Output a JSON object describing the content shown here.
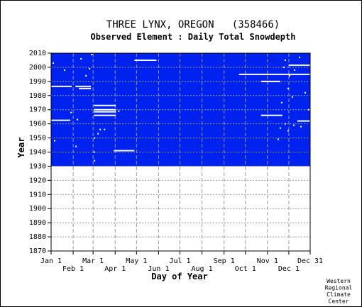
{
  "chart_data": {
    "type": "heatmap",
    "title": "THREE LYNX, OREGON   (358466)",
    "subtitle": "Observed Element : Daily Total Snowdepth",
    "xlabel": "Day of Year",
    "ylabel": "Year",
    "xlim": [
      1,
      365
    ],
    "ylim": [
      1870,
      2010
    ],
    "x_ticks_row1": [
      {
        "label": "Jan 1",
        "day": 1
      },
      {
        "label": "Mar 1",
        "day": 60
      },
      {
        "label": "May 1",
        "day": 121
      },
      {
        "label": "Jul 1",
        "day": 182
      },
      {
        "label": "Sep 1",
        "day": 244
      },
      {
        "label": "Nov 1",
        "day": 305
      },
      {
        "label": "Dec 31",
        "day": 365
      }
    ],
    "x_ticks_row2": [
      {
        "label": "Feb 1",
        "day": 32
      },
      {
        "label": "Apr 1",
        "day": 91
      },
      {
        "label": "Jun 1",
        "day": 152
      },
      {
        "label": "Aug 1",
        "day": 213
      },
      {
        "label": "Oct 1",
        "day": 274
      },
      {
        "label": "Dec 1",
        "day": 335
      }
    ],
    "y_ticks": [
      1870,
      1880,
      1890,
      1900,
      1910,
      1920,
      1930,
      1940,
      1950,
      1960,
      1970,
      1980,
      1990,
      2000,
      2010
    ],
    "grid": true,
    "record_period": {
      "start_year": 1930,
      "end_year": 2010
    },
    "colors": {
      "data_present": "#0022ee",
      "missing": "#ffffff",
      "grid": "#999999"
    },
    "missing_segments": [
      {
        "year": 1986.5,
        "start_day": 1,
        "end_day": 29
      },
      {
        "year": 1986.5,
        "start_day": 35,
        "end_day": 56
      },
      {
        "year": 1985,
        "start_day": 40,
        "end_day": 56
      },
      {
        "year": 1962.5,
        "start_day": 1,
        "end_day": 27
      },
      {
        "year": 2005,
        "start_day": 118,
        "end_day": 148
      },
      {
        "year": 1995,
        "start_day": 265,
        "end_day": 365
      },
      {
        "year": 1990,
        "start_day": 296,
        "end_day": 322
      },
      {
        "year": 1966,
        "start_day": 296,
        "end_day": 325
      },
      {
        "year": 2001.5,
        "start_day": 335,
        "end_day": 365
      },
      {
        "year": 1962,
        "start_day": 347,
        "end_day": 365
      },
      {
        "year": 1973,
        "start_day": 61,
        "end_day": 91
      },
      {
        "year": 1970,
        "start_day": 61,
        "end_day": 91
      },
      {
        "year": 1968.5,
        "start_day": 61,
        "end_day": 91
      },
      {
        "year": 1966,
        "start_day": 61,
        "end_day": 91
      },
      {
        "year": 1941,
        "start_day": 89,
        "end_day": 117
      },
      {
        "year": 1950,
        "start_day": 61,
        "end_day": 61
      },
      {
        "year": 1940,
        "start_day": 61,
        "end_day": 61
      },
      {
        "year": 1934,
        "start_day": 61,
        "end_day": 61
      }
    ],
    "missing_points": [
      {
        "year": 1948,
        "day": 6
      },
      {
        "year": 1998,
        "day": 20
      },
      {
        "year": 1968,
        "day": 29
      },
      {
        "year": 1963,
        "day": 38
      },
      {
        "year": 1944,
        "day": 36
      },
      {
        "year": 1994,
        "day": 50
      },
      {
        "year": 2006,
        "day": 43
      },
      {
        "year": 1999,
        "day": 55
      },
      {
        "year": 2009,
        "day": 58
      },
      {
        "year": 2003,
        "day": 4
      },
      {
        "year": 1956,
        "day": 70
      },
      {
        "year": 1956,
        "day": 76
      },
      {
        "year": 1953,
        "day": 67
      },
      {
        "year": 1969,
        "day": 96
      },
      {
        "year": 2007,
        "day": 350
      },
      {
        "year": 2005,
        "day": 330
      },
      {
        "year": 2000,
        "day": 328
      },
      {
        "year": 1998,
        "day": 343
      },
      {
        "year": 1994,
        "day": 336
      },
      {
        "year": 1985,
        "day": 334
      },
      {
        "year": 1982,
        "day": 358
      },
      {
        "year": 1979,
        "day": 340
      },
      {
        "year": 1975,
        "day": 325
      },
      {
        "year": 1970,
        "day": 363
      },
      {
        "year": 1960,
        "day": 330
      },
      {
        "year": 1957,
        "day": 323
      },
      {
        "year": 1955,
        "day": 334
      },
      {
        "year": 1949,
        "day": 320
      },
      {
        "year": 1958,
        "day": 352
      },
      {
        "year": 1959,
        "day": 342
      }
    ],
    "credit": [
      "Western",
      "Regional",
      "Climate",
      "Center"
    ]
  }
}
